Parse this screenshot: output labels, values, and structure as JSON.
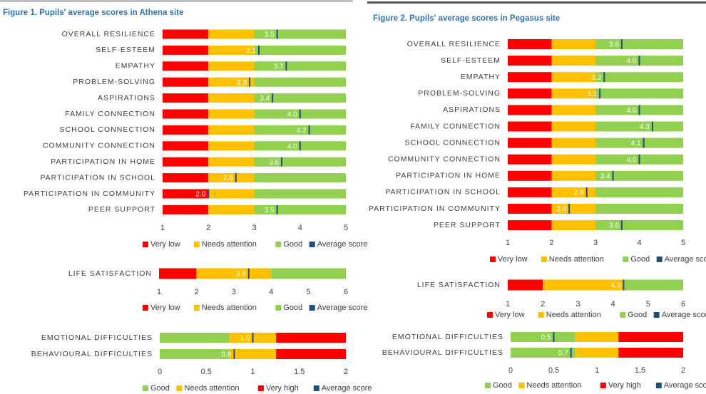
{
  "chart_data": [
    {
      "type": "bar",
      "title": "Figure 1. Pupils' average scores in Athena site",
      "categories": [
        "OVERALL RESILIENCE",
        "SELF-ESTEEM",
        "EMPATHY",
        "PROBLEM-SOLVING",
        "ASPIRATIONS",
        "FAMILY CONNECTION",
        "SCHOOL CONNECTION",
        "COMMUNITY CONNECTION",
        "PARTICIPATION IN HOME",
        "PARTICIPATION IN SCHOOL",
        "PARTICIPATION IN COMMUNITY",
        "PEER SUPPORT"
      ],
      "series": [
        {
          "name": "Very low",
          "color": "#ff0000",
          "values": [
            1,
            1,
            1,
            1,
            1,
            1,
            1,
            1,
            1,
            1,
            1,
            1
          ]
        },
        {
          "name": "Needs attention",
          "color": "#ffc000",
          "values": [
            1,
            1,
            1,
            1,
            1,
            1,
            1,
            1,
            1,
            1,
            1,
            1
          ]
        },
        {
          "name": "Good",
          "color": "#92d050",
          "values": [
            2,
            2,
            2,
            2,
            2,
            2,
            2,
            2,
            2,
            2,
            2,
            2
          ]
        },
        {
          "name": "Average score",
          "color": "#1f4e79",
          "style": "marker",
          "values": [
            3.5,
            3.1,
            3.7,
            2.9,
            3.4,
            4.0,
            4.2,
            4.0,
            3.6,
            2.6,
            2.0,
            3.5
          ],
          "value_labels": [
            "3.5",
            "3.1",
            "3.7",
            "2.9",
            "3.4",
            "4.0",
            "4.2",
            "4.0",
            "3.6",
            "2.6",
            "2.0",
            "3.5"
          ]
        }
      ],
      "xlim": [
        1,
        5
      ],
      "xticks": [
        1,
        2,
        3,
        4,
        5
      ]
    },
    {
      "type": "bar",
      "categories": [
        "LIFE SATISFACTION"
      ],
      "series": [
        {
          "name": "Very low",
          "color": "#ff0000",
          "values": [
            1
          ]
        },
        {
          "name": "Needs attention",
          "color": "#ffc000",
          "values": [
            2
          ]
        },
        {
          "name": "Good",
          "color": "#92d050",
          "values": [
            2
          ]
        },
        {
          "name": "Average score",
          "color": "#1f4e79",
          "style": "marker",
          "values": [
            3.4
          ],
          "value_labels": [
            "3.4"
          ]
        }
      ],
      "xlim": [
        1,
        6
      ],
      "xticks": [
        1,
        2,
        3,
        4,
        5,
        6
      ]
    },
    {
      "type": "bar",
      "categories": [
        "EMOTIONAL DIFFICULTIES",
        "BEHAVIOURAL DIFFICULTIES"
      ],
      "series": [
        {
          "name": "Good",
          "color": "#92d050",
          "values": [
            0.75,
            0.75
          ]
        },
        {
          "name": "Needs attention",
          "color": "#ffc000",
          "values": [
            0.5,
            0.5
          ]
        },
        {
          "name": "Very high",
          "color": "#ff0000",
          "values": [
            0.75,
            0.75
          ]
        },
        {
          "name": "Average score",
          "color": "#1f4e79",
          "style": "marker",
          "values": [
            1.0,
            0.8
          ],
          "value_labels": [
            "1.0",
            "0.8"
          ]
        }
      ],
      "xlim": [
        0,
        2
      ],
      "xticks": [
        0,
        0.5,
        1,
        1.5,
        2
      ]
    },
    {
      "type": "bar",
      "title": "Figure 2. Pupils' average scores in Pegasus site",
      "categories": [
        "OVERALL RESILIENCE",
        "SELF-ESTEEM",
        "EMPATHY",
        "PROBLEM-SOLVING",
        "ASPIRATIONS",
        "FAMILY CONNECTION",
        "SCHOOL CONNECTION",
        "COMMUNITY CONNECTION",
        "PARTICIPATION IN HOME",
        "PARTICIPATION IN SCHOOL",
        "PARTICIPATION IN COMMUNITY",
        "PEER SUPPORT"
      ],
      "series": [
        {
          "name": "Very low",
          "color": "#ff0000",
          "values": [
            1,
            1,
            1,
            1,
            1,
            1,
            1,
            1,
            1,
            1,
            1,
            1
          ]
        },
        {
          "name": "Needs attention",
          "color": "#ffc000",
          "values": [
            1,
            1,
            1,
            1,
            1,
            1,
            1,
            1,
            1,
            1,
            1,
            1
          ]
        },
        {
          "name": "Good",
          "color": "#92d050",
          "values": [
            2,
            2,
            2,
            2,
            2,
            2,
            2,
            2,
            2,
            2,
            2,
            2
          ]
        },
        {
          "name": "Average score",
          "color": "#1f4e79",
          "style": "marker",
          "values": [
            3.6,
            4.0,
            3.2,
            3.1,
            4.0,
            4.3,
            4.1,
            4.0,
            3.4,
            2.8,
            2.4,
            3.6
          ],
          "value_labels": [
            "3.6",
            "4.0",
            "3.2",
            "3.1",
            "4.0",
            "4.3",
            "4.1",
            "4.0",
            "3.4",
            "2.8",
            "2.4",
            "3.6"
          ]
        }
      ],
      "xlim": [
        1,
        5
      ],
      "xticks": [
        1,
        2,
        3,
        4,
        5
      ]
    },
    {
      "type": "bar",
      "categories": [
        "LIFE SATISFACTION"
      ],
      "series": [
        {
          "name": "Very low",
          "color": "#ff0000",
          "values": [
            1
          ]
        },
        {
          "name": "Needs attention",
          "color": "#ffc000",
          "values": [
            2.3
          ]
        },
        {
          "name": "Good",
          "color": "#92d050",
          "values": [
            1.7
          ]
        },
        {
          "name": "Average score",
          "color": "#1f4e79",
          "style": "marker",
          "values": [
            4.3
          ],
          "value_labels": [
            "4.3"
          ]
        }
      ],
      "xlim": [
        1,
        6
      ],
      "xticks": [
        1,
        2,
        3,
        4,
        5,
        6
      ]
    },
    {
      "type": "bar",
      "categories": [
        "EMOTIONAL DIFFICULTIES",
        "BEHAVIOURAL DIFFICULTIES"
      ],
      "series": [
        {
          "name": "Good",
          "color": "#92d050",
          "values": [
            0.75,
            0.75
          ]
        },
        {
          "name": "Needs attention",
          "color": "#ffc000",
          "values": [
            0.5,
            0.5
          ]
        },
        {
          "name": "Very high",
          "color": "#ff0000",
          "values": [
            0.75,
            0.75
          ]
        },
        {
          "name": "Average score",
          "color": "#1f4e79",
          "style": "marker",
          "values": [
            0.5,
            0.7
          ],
          "value_labels": [
            "0.5",
            "0.7"
          ]
        }
      ],
      "xlim": [
        0,
        2
      ],
      "xticks": [
        0,
        0.5,
        1,
        1.5,
        2
      ]
    }
  ]
}
